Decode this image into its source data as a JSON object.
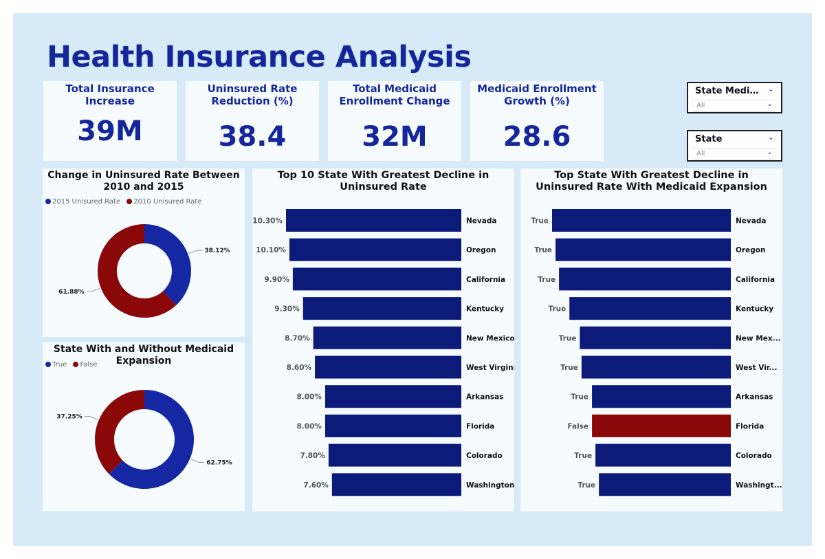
{
  "title": "Health Insurance Analysis",
  "colors": {
    "blue": "#0c1a7a",
    "donut_blue": "#1527a2",
    "red": "#8b0808",
    "title_blue": "#14269a"
  },
  "kpis": [
    {
      "label": "Total Insurance Increase",
      "value": "39M"
    },
    {
      "label": "Uninsured Rate Reduction (%)",
      "value": "38.4"
    },
    {
      "label": "Total Medicaid Enrollment Change",
      "value": "32M"
    },
    {
      "label": "Medicaid Enrollment Growth (%)",
      "value": "28.6"
    }
  ],
  "slicers": [
    {
      "title": "State Medicaid...",
      "value": "All"
    },
    {
      "title": "State",
      "value": "All"
    }
  ],
  "chart_data": [
    {
      "type": "pie",
      "variant": "donut",
      "title": "Change in Uninsured Rate Between 2010 and 2015",
      "legend": [
        "2015 Unisured Rate",
        "2010 Unisured Rate"
      ],
      "categories": [
        "2015 Unisured Rate",
        "2010 Unisured Rate"
      ],
      "values": [
        38.12,
        61.88
      ],
      "labels": [
        "38.12%",
        "61.88%"
      ]
    },
    {
      "type": "pie",
      "variant": "donut",
      "title": "State With and Without Medicaid Expansion",
      "legend": [
        "True",
        "False"
      ],
      "categories": [
        "True",
        "False"
      ],
      "values": [
        62.75,
        37.25
      ],
      "labels": [
        "62.75%",
        "37.25%"
      ]
    },
    {
      "type": "bar",
      "orientation": "horizontal",
      "title": "Top 10 State With Greatest Decline in Uninsured Rate",
      "categories": [
        "Nevada",
        "Oregon",
        "California",
        "Kentucky",
        "New Mexico",
        "West Virginia",
        "Arkansas",
        "Florida",
        "Colorado",
        "Washington"
      ],
      "values": [
        10.3,
        10.1,
        9.9,
        9.3,
        8.7,
        8.6,
        8.0,
        8.0,
        7.8,
        7.6
      ],
      "labels": [
        "10.30%",
        "10.10%",
        "9.90%",
        "9.30%",
        "8.70%",
        "8.60%",
        "8.00%",
        "8.00%",
        "7.80%",
        "7.60%"
      ]
    },
    {
      "type": "bar",
      "orientation": "horizontal",
      "title": "Top State With Greatest Decline in Uninsured Rate With Medicaid Expansion",
      "categories": [
        "Nevada",
        "Oregon",
        "California",
        "Kentucky",
        "New Mex...",
        "West Vir...",
        "Arkansas",
        "Florida",
        "Colorado",
        "Washingt..."
      ],
      "values": [
        10.3,
        10.1,
        9.9,
        9.3,
        8.7,
        8.6,
        8.0,
        8.0,
        7.8,
        7.6
      ],
      "labels": [
        "True",
        "True",
        "True",
        "True",
        "True",
        "True",
        "True",
        "False",
        "True",
        "True"
      ]
    }
  ]
}
